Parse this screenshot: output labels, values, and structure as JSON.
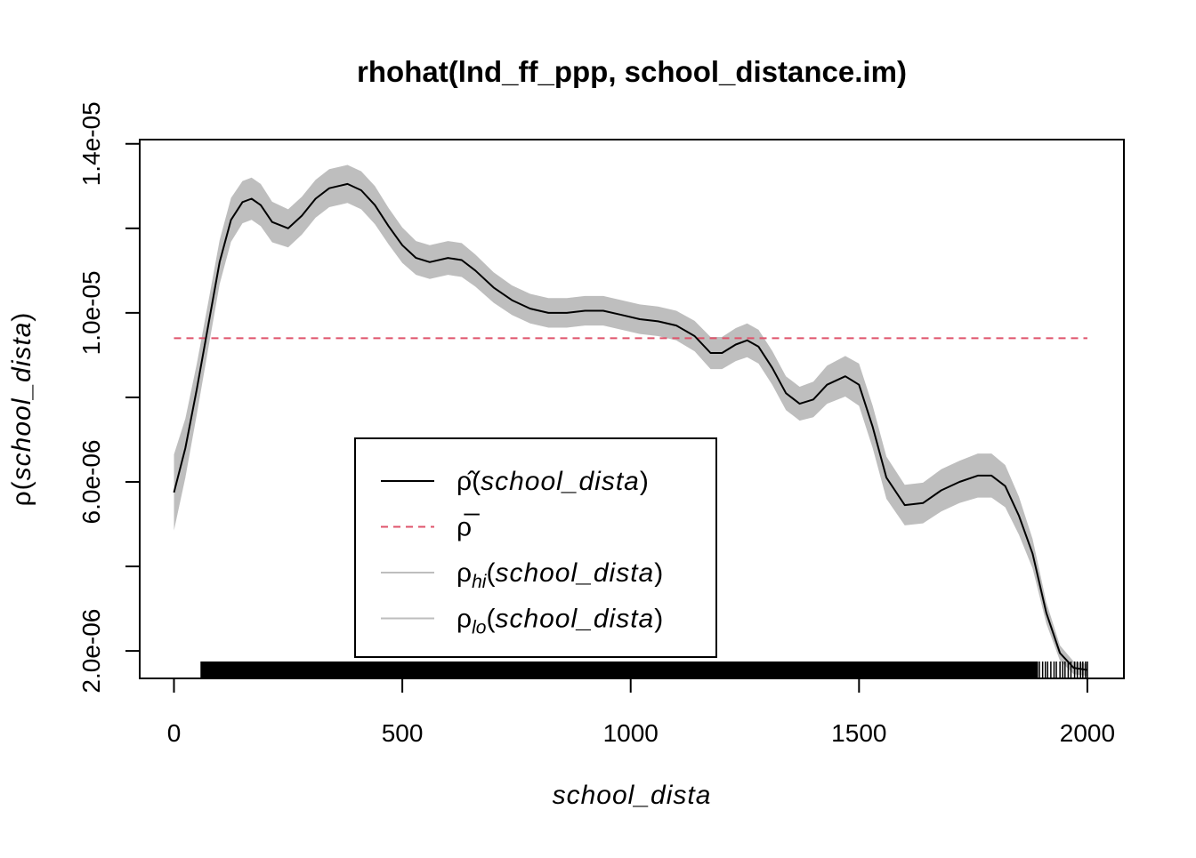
{
  "chart_data": {
    "type": "line",
    "title": "rhohat(lnd_ff_ppp, school_distance.im)",
    "xlabel": "school_dista",
    "ylabel_symbol": "ρ",
    "ylabel_arg": "school_dista",
    "xlim": [
      -75,
      2080
    ],
    "ylim": [
      1.35e-06,
      1.41e-05
    ],
    "x_ticks": [
      0,
      500,
      1000,
      1500,
      2000
    ],
    "x_tick_labels": [
      "0",
      "500",
      "1000",
      "1500",
      "2000"
    ],
    "y_ticks": [
      2e-06,
      4e-06,
      6e-06,
      8e-06,
      1e-05,
      1.2e-05,
      1.4e-05
    ],
    "y_tick_labels": [
      "2.0e-06",
      "",
      "6.0e-06",
      "",
      "1.0e-05",
      "",
      "1.4e-05"
    ],
    "grid": false,
    "legend_position": "bottom-left-center",
    "legend": [
      {
        "symbol": "ρ̂",
        "sub": "",
        "arg": "school_dista",
        "style": "solid",
        "color": "#000000"
      },
      {
        "symbol": "ρ̅",
        "sub": "",
        "arg": "",
        "style": "dashed",
        "color": "#DF536B"
      },
      {
        "symbol": "ρ",
        "sub": "hi",
        "arg": "school_dista",
        "style": "solid",
        "color": "#BEBEBE"
      },
      {
        "symbol": "ρ",
        "sub": "lo",
        "arg": "school_dista",
        "style": "solid",
        "color": "#BEBEBE"
      }
    ],
    "colors": {
      "estimate": "#000000",
      "average": "#DF536B",
      "band": "#BEBEBE"
    },
    "average_line": {
      "y": 9.4e-06,
      "x_from": 0,
      "x_to": 2000
    },
    "series": [
      {
        "name": "ρ̂(school_dista)",
        "x": [
          0,
          25,
          50,
          75,
          100,
          125,
          150,
          170,
          190,
          215,
          250,
          280,
          310,
          340,
          380,
          410,
          440,
          470,
          500,
          530,
          560,
          600,
          630,
          660,
          700,
          740,
          780,
          820,
          860,
          900,
          940,
          980,
          1020,
          1060,
          1100,
          1140,
          1175,
          1200,
          1230,
          1255,
          1280,
          1310,
          1340,
          1370,
          1400,
          1430,
          1470,
          1500,
          1530,
          1560,
          1600,
          1640,
          1680,
          1720,
          1760,
          1790,
          1820,
          1850,
          1880,
          1910,
          1940,
          1970,
          2000
        ],
        "y": [
          5.75e-06,
          6.8e-06,
          8.2e-06,
          9.7e-06,
          1.12e-05,
          1.22e-05,
          1.262e-05,
          1.27e-05,
          1.255e-05,
          1.215e-05,
          1.2e-05,
          1.23e-05,
          1.27e-05,
          1.295e-05,
          1.305e-05,
          1.29e-05,
          1.255e-05,
          1.205e-05,
          1.16e-05,
          1.13e-05,
          1.12e-05,
          1.13e-05,
          1.125e-05,
          1.1e-05,
          1.06e-05,
          1.03e-05,
          1.01e-05,
          1e-05,
          1e-05,
          1.005e-05,
          1.005e-05,
          9.95e-06,
          9.85e-06,
          9.8e-06,
          9.7e-06,
          9.45e-06,
          9.05e-06,
          9.05e-06,
          9.25e-06,
          9.35e-06,
          9.2e-06,
          8.7e-06,
          8.1e-06,
          7.85e-06,
          7.95e-06,
          8.3e-06,
          8.5e-06,
          8.3e-06,
          7.3e-06,
          6.1e-06,
          5.45e-06,
          5.5e-06,
          5.8e-06,
          6e-06,
          6.15e-06,
          6.15e-06,
          5.9e-06,
          5.2e-06,
          4.3e-06,
          2.9e-06,
          1.95e-06,
          1.6e-06,
          1.55e-06
        ]
      }
    ],
    "band_halfwidth": [
      9e-07,
      7e-07,
      6e-07,
      5.5e-07,
      5.2e-07,
      5.2e-07,
      5e-07,
      5e-07,
      5e-07,
      4.8e-07,
      4.5e-07,
      4.5e-07,
      4.5e-07,
      4.5e-07,
      4.5e-07,
      4.5e-07,
      4.5e-07,
      4.3e-07,
      4.2e-07,
      4e-07,
      4e-07,
      4e-07,
      4e-07,
      3.8e-07,
      3.6e-07,
      3.5e-07,
      3.5e-07,
      3.5e-07,
      3.5e-07,
      3.5e-07,
      3.5e-07,
      3.5e-07,
      3.5e-07,
      3.5e-07,
      3.5e-07,
      3.6e-07,
      3.8e-07,
      3.8e-07,
      3.9e-07,
      4e-07,
      4e-07,
      4e-07,
      4e-07,
      4e-07,
      4.2e-07,
      4.5e-07,
      4.8e-07,
      5e-07,
      5e-07,
      5e-07,
      4.8e-07,
      4.8e-07,
      5e-07,
      5e-07,
      5.2e-07,
      5.2e-07,
      5e-07,
      4.5e-07,
      3.5e-07,
      2.5e-07,
      1.8e-07,
      1.5e-07,
      1.4e-07
    ],
    "rug": {
      "dense_from": 60,
      "dense_to": 1890,
      "max_x": 2000,
      "tail_marks": [
        1895,
        1902,
        1908,
        1913,
        1920,
        1927,
        1932,
        1940,
        1946,
        1951,
        1958,
        1964,
        1972,
        1978,
        1985,
        1990,
        1996,
        2000
      ]
    }
  }
}
